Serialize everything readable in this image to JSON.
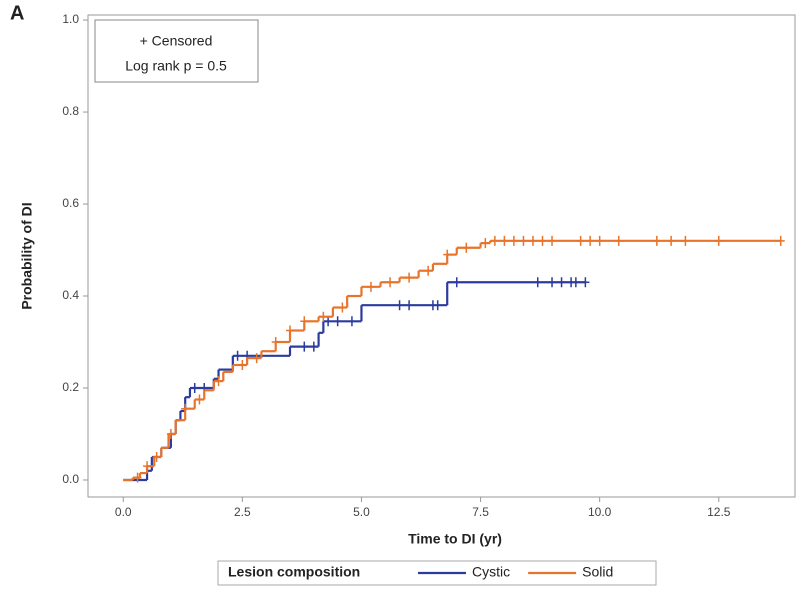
{
  "chart_data": {
    "type": "km",
    "panel_label": "A",
    "annotation": [
      "+ Censored",
      "Log rank p = 0.5"
    ],
    "x_label": "Time to DI (yr)",
    "y_label": "Probability of DI",
    "legend_title": "Lesion composition",
    "xlim": [
      -0.74,
      14.1
    ],
    "ylim": [
      -0.037,
      1.011
    ],
    "xticks": [
      {
        "value": 0,
        "label": "0.0"
      },
      2.5,
      {
        "value": 5,
        "label": "5.0"
      },
      7.5,
      {
        "value": 10,
        "label": "10.0"
      },
      12.5
    ],
    "yticks": [
      {
        "value": 0,
        "label": "0.0"
      },
      0.2,
      0.4,
      0.6,
      0.8,
      {
        "value": 1,
        "label": "1.0"
      }
    ],
    "series": [
      {
        "name": "Cystic",
        "color": "#2b3b9e",
        "x": [
          0,
          0.5,
          0.6,
          0.8,
          1.0,
          1.1,
          1.2,
          1.3,
          1.4,
          1.9,
          2.0,
          2.3,
          3.5,
          4.1,
          4.2,
          5.0,
          6.8,
          9.7
        ],
        "values": [
          0,
          0.02,
          0.05,
          0.07,
          0.1,
          0.13,
          0.15,
          0.18,
          0.2,
          0.22,
          0.24,
          0.27,
          0.29,
          0.32,
          0.345,
          0.38,
          0.43,
          0.43
        ],
        "censored": [
          1.5,
          1.7,
          2.4,
          2.6,
          3.8,
          4.0,
          4.3,
          4.5,
          4.8,
          5.8,
          6.0,
          6.5,
          6.6,
          7.0,
          8.7,
          9.0,
          9.2,
          9.4,
          9.5,
          9.7
        ]
      },
      {
        "name": "Solid",
        "color": "#e8732a",
        "x": [
          0,
          0.2,
          0.35,
          0.5,
          0.65,
          0.8,
          0.95,
          1.1,
          1.3,
          1.5,
          1.7,
          1.9,
          2.1,
          2.3,
          2.6,
          2.9,
          3.2,
          3.5,
          3.8,
          4.1,
          4.4,
          4.7,
          5.0,
          5.4,
          5.8,
          6.2,
          6.5,
          6.8,
          7.0,
          7.5,
          7.7,
          13.8
        ],
        "values": [
          0,
          0.005,
          0.015,
          0.03,
          0.05,
          0.07,
          0.1,
          0.13,
          0.155,
          0.175,
          0.195,
          0.215,
          0.235,
          0.25,
          0.265,
          0.28,
          0.3,
          0.325,
          0.345,
          0.355,
          0.375,
          0.4,
          0.42,
          0.43,
          0.44,
          0.455,
          0.47,
          0.49,
          0.505,
          0.515,
          0.52,
          0.52
        ],
        "censored": [
          0.3,
          0.5,
          0.7,
          1.0,
          1.3,
          1.6,
          2.0,
          2.5,
          2.8,
          3.2,
          3.5,
          3.8,
          4.2,
          4.6,
          5.2,
          5.6,
          6.0,
          6.4,
          6.8,
          7.2,
          7.6,
          7.8,
          8.0,
          8.2,
          8.4,
          8.6,
          8.8,
          9.0,
          9.6,
          9.8,
          10.0,
          10.4,
          11.2,
          11.5,
          11.8,
          12.5,
          13.8
        ]
      }
    ]
  }
}
